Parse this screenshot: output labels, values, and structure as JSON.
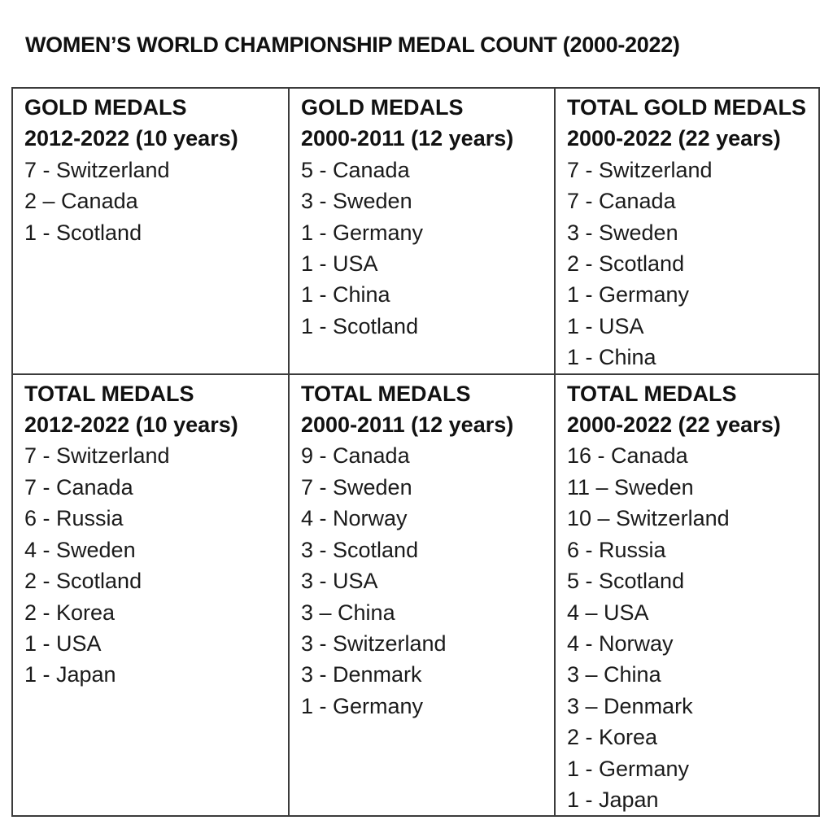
{
  "title": "WOMEN’S WORLD CHAMPIONSHIP MEDAL COUNT (2000-2022)",
  "colors": {
    "text": "#1b1b1b",
    "heading_text": "#111111",
    "border": "#3b3b3b",
    "background": "#ffffff"
  },
  "table": {
    "rows": [
      {
        "cells": [
          {
            "heading": [
              "GOLD MEDALS",
              "2012-2022 (10 years)"
            ],
            "entries": [
              "7 - Switzerland",
              "2 – Canada",
              "1 - Scotland"
            ]
          },
          {
            "heading": [
              "GOLD MEDALS",
              "2000-2011 (12 years)"
            ],
            "entries": [
              "5 - Canada",
              "3 - Sweden",
              "1 - Germany",
              "1 - USA",
              "1 - China",
              "1 - Scotland"
            ]
          },
          {
            "heading": [
              "TOTAL GOLD MEDALS",
              "2000-2022 (22 years)"
            ],
            "entries": [
              "7 - Switzerland",
              "7 - Canada",
              "3 - Sweden",
              "2 - Scotland",
              "1 - Germany",
              "1 - USA",
              "1 - China"
            ]
          }
        ]
      },
      {
        "cells": [
          {
            "heading": [
              "TOTAL MEDALS",
              "2012-2022 (10 years)"
            ],
            "entries": [
              "7 - Switzerland",
              "7 - Canada",
              "6 - Russia",
              "4 - Sweden",
              "2 - Scotland",
              "2 - Korea",
              "1 - USA",
              "1 - Japan"
            ]
          },
          {
            "heading": [
              "TOTAL MEDALS",
              "2000-2011 (12 years)"
            ],
            "entries": [
              "9 - Canada",
              "7 - Sweden",
              "4 - Norway",
              "3 - Scotland",
              "3 - USA",
              "3 – China",
              "3 - Switzerland",
              "3 - Denmark",
              "1 - Germany"
            ]
          },
          {
            "heading": [
              "TOTAL MEDALS",
              "2000-2022 (22 years)"
            ],
            "entries": [
              "16 - Canada",
              "11 – Sweden",
              "10 – Switzerland",
              "6 - Russia",
              "5 - Scotland",
              "4 – USA",
              "4 - Norway",
              "3 – China",
              "3 – Denmark",
              "2 - Korea",
              "1 - Germany",
              "1 - Japan"
            ]
          }
        ]
      }
    ]
  }
}
